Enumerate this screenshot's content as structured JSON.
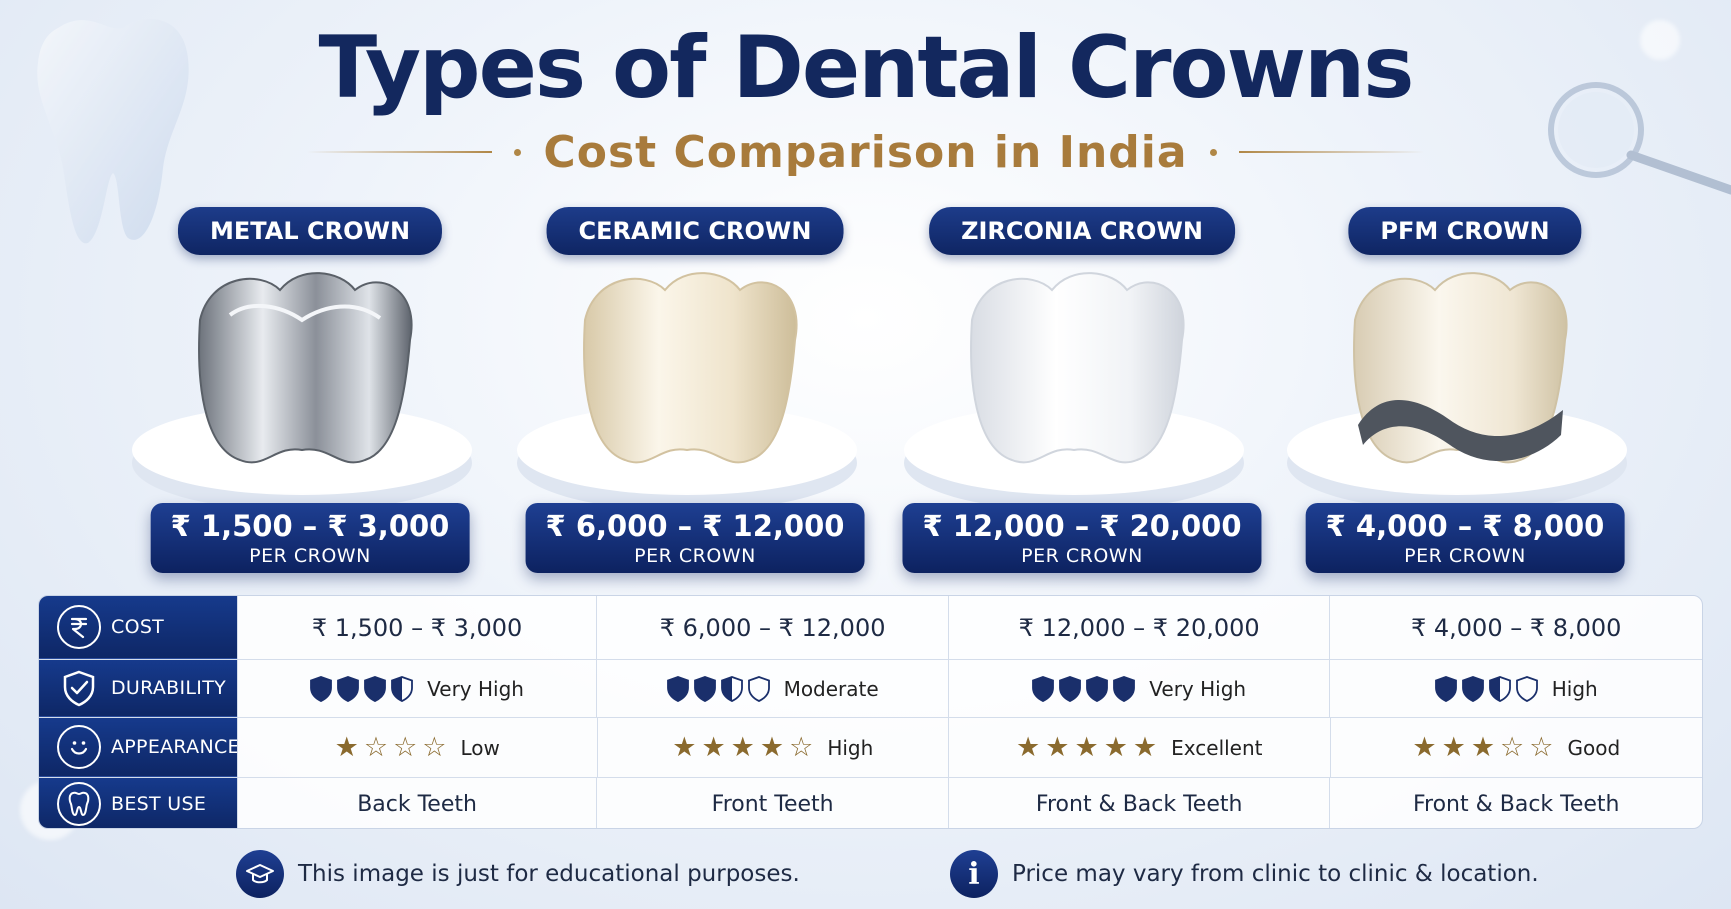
{
  "header": {
    "title": "Types of Dental Crowns",
    "subtitle": "Cost Comparison in India"
  },
  "crowns": [
    {
      "name": "METAL CROWN",
      "price": "₹ 1,500 – ₹ 3,000",
      "price_unit": "PER CROWN",
      "color": "#b9bec6"
    },
    {
      "name": "CERAMIC CROWN",
      "price": "₹ 6,000 – ₹ 12,000",
      "price_unit": "PER CROWN",
      "color": "#ece2cc"
    },
    {
      "name": "ZIRCONIA CROWN",
      "price": "₹ 12,000 – ₹ 20,000",
      "price_unit": "PER CROWN",
      "color": "#f4f4f6"
    },
    {
      "name": "PFM CROWN",
      "price": "₹ 4,000 – ₹ 8,000",
      "price_unit": "PER CROWN",
      "color": "#efe7d6"
    }
  ],
  "table": {
    "rows": [
      {
        "label": "COST",
        "icon": "rupee-icon"
      },
      {
        "label": "DURABILITY",
        "icon": "shield-check-icon"
      },
      {
        "label": "APPEARANCE",
        "icon": "smiley-icon"
      },
      {
        "label": "BEST USE",
        "icon": "tooth-icon"
      }
    ],
    "cost": [
      "₹ 1,500 – ₹ 3,000",
      "₹ 6,000 – ₹ 12,000",
      "₹ 12,000 – ₹ 20,000",
      "₹ 4,000 – ₹ 8,000"
    ],
    "durability": [
      {
        "shields": 3.5,
        "max": 4,
        "text": "Very High"
      },
      {
        "shields": 2.5,
        "max": 4,
        "text": "Moderate"
      },
      {
        "shields": 4,
        "max": 4,
        "text": "Very High"
      },
      {
        "shields": 2.5,
        "max": 4,
        "text": "High"
      }
    ],
    "appearance": [
      {
        "stars": 1,
        "max": 4,
        "text": "Low"
      },
      {
        "stars": 4,
        "max": 5,
        "text": "High"
      },
      {
        "stars": 5,
        "max": 5,
        "text": "Excellent"
      },
      {
        "stars": 3,
        "max": 5,
        "text": "Good"
      }
    ],
    "best_use": [
      "Back Teeth",
      "Front Teeth",
      "Front & Back Teeth",
      "Front & Back Teeth"
    ]
  },
  "footer": {
    "left_note": "This image is just for educational purposes.",
    "left_icon": "graduation-cap-icon",
    "right_note": "Price may vary from clinic to clinic & location.",
    "right_icon": "info-icon",
    "right_icon_glyph": "i"
  },
  "colors": {
    "navy": "#13285e",
    "gold": "#a87b3c",
    "rating": "#8a6a2e",
    "shield": "#1a2f6b"
  }
}
